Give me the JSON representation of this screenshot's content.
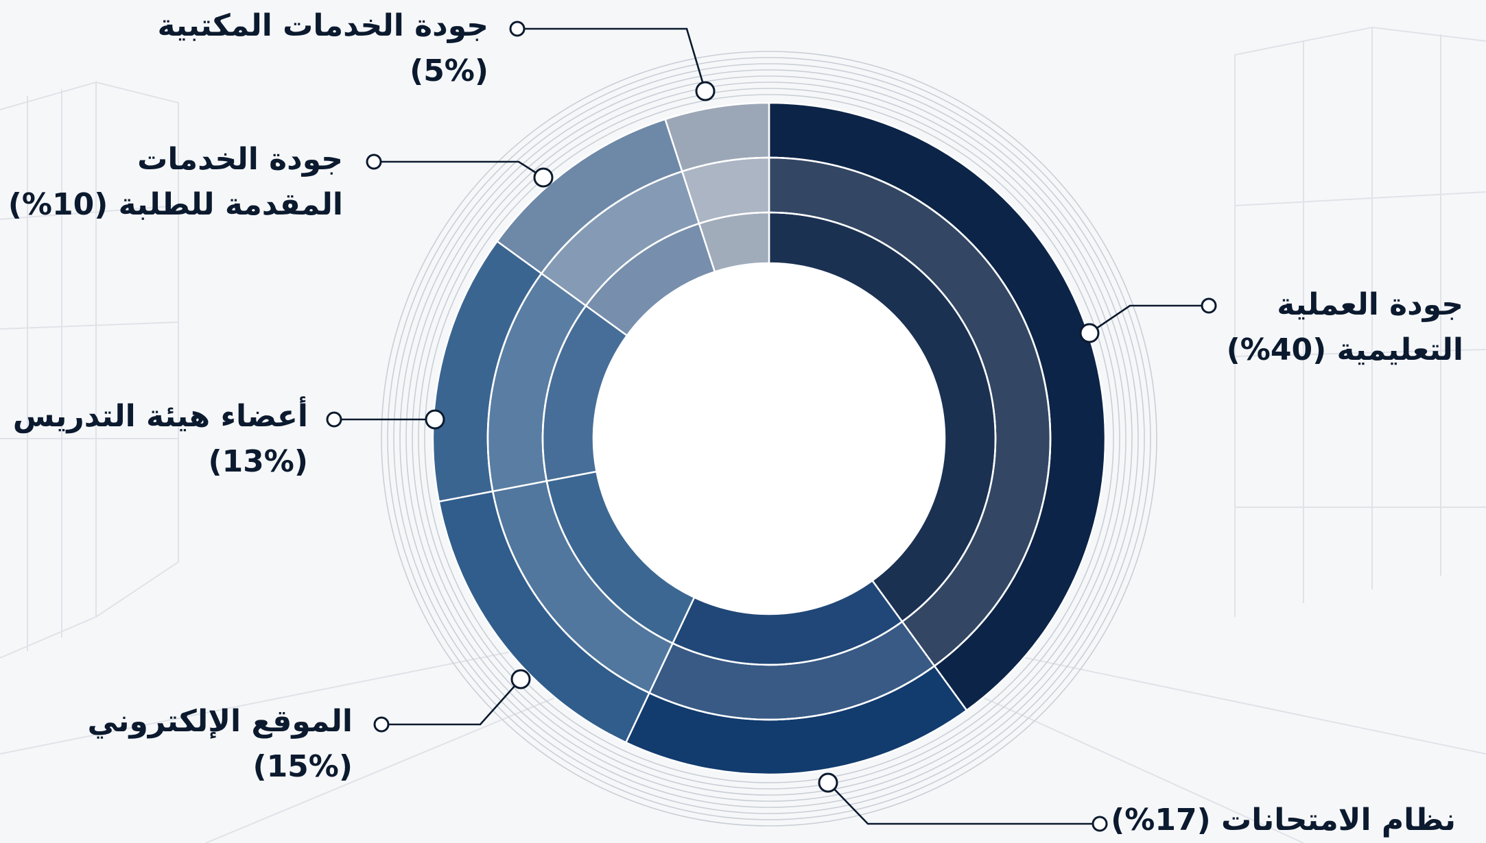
{
  "chart_data": {
    "type": "pie",
    "categories": [
      "جودة العملية التعليمية",
      "نظام الامتحانات",
      "الموقع الإلكتروني",
      "أعضاء هيئة التدريس",
      "جودة الخدمات المقدمة للطلبة",
      "جودة الخدمات المكتبية"
    ],
    "values": [
      40,
      17,
      15,
      13,
      10,
      5
    ],
    "colors": [
      "#0c2447",
      "#123b6e",
      "#305d8c",
      "#3b6591",
      "#6e88a7",
      "#9ba7b7"
    ],
    "donut": true
  },
  "labels": [
    {
      "line1": "جودة العملية",
      "line2": "التعليمية (40%)"
    },
    {
      "line1": "نظام الامتحانات (17%)",
      "line2": ""
    },
    {
      "line1": "الموقع الإلكتروني",
      "line2": "(15%)"
    },
    {
      "line1": "أعضاء هيئة التدريس",
      "line2": "(13%)"
    },
    {
      "line1": "جودة الخدمات",
      "line2": "المقدمة للطلبة (10%)"
    },
    {
      "line1": "جودة الخدمات المكتبية",
      "line2": "(5%)"
    }
  ]
}
